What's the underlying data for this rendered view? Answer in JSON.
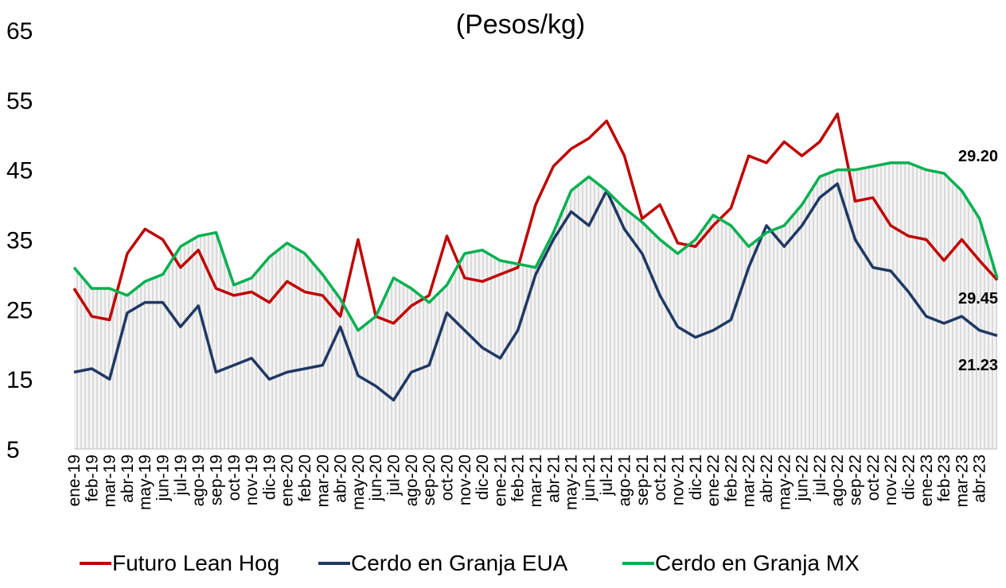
{
  "chart_data": {
    "type": "line",
    "title": "(Pesos/kg)",
    "categories": [
      "ene-19",
      "feb-19",
      "mar-19",
      "abr-19",
      "may-19",
      "jun-19",
      "jul-19",
      "ago-19",
      "sep-19",
      "oct-19",
      "nov-19",
      "dic-19",
      "ene-20",
      "feb-20",
      "mar-20",
      "abr-20",
      "may-20",
      "jun-20",
      "jul-20",
      "ago-20",
      "sep-20",
      "oct-20",
      "nov-20",
      "dic-20",
      "ene-21",
      "feb-21",
      "mar-21",
      "abr-21",
      "may-21",
      "jun-21",
      "jul-21",
      "ago-21",
      "sep-21",
      "oct-21",
      "nov-21",
      "dic-21",
      "ene-22",
      "feb-22",
      "mar-22",
      "abr-22",
      "may-22",
      "jun-22",
      "jul-22",
      "ago-22",
      "sep-22",
      "oct-22",
      "nov-22",
      "dic-22",
      "ene-23",
      "feb-23",
      "mar-23",
      "abr-23",
      null
    ],
    "series": [
      {
        "name": "Futuro Lean Hog",
        "color": "#c00000",
        "values": [
          28,
          24,
          23.5,
          33,
          36.5,
          35,
          31,
          33.5,
          28,
          27,
          27.5,
          26,
          29,
          27.5,
          27,
          24,
          35,
          24,
          23,
          25.5,
          27,
          35.5,
          29.5,
          29,
          30,
          31,
          40,
          45.5,
          48,
          49.5,
          52,
          47,
          38,
          40,
          34.5,
          34,
          37,
          39.5,
          47,
          46,
          49,
          47,
          49,
          53,
          40.5,
          41,
          37,
          35.5,
          35,
          32,
          35,
          32,
          29.2
        ]
      },
      {
        "name": "Cerdo en Granja EUA",
        "color": "#1f3864",
        "values": [
          16,
          16.5,
          15,
          24.5,
          26,
          26,
          22.5,
          25.5,
          16,
          17,
          18,
          15,
          16,
          16.5,
          17,
          22.5,
          15.5,
          14,
          12,
          16,
          17,
          24.5,
          22,
          19.5,
          18,
          22,
          30,
          35,
          39,
          37,
          42,
          36.5,
          33,
          27,
          22.5,
          21,
          22,
          23.5,
          31,
          37,
          34,
          37,
          41,
          43,
          35,
          31,
          30.5,
          27.5,
          24,
          23,
          24,
          22,
          21.23
        ]
      },
      {
        "name": "Cerdo en Granja MX",
        "color": "#00b050",
        "values": [
          31,
          28,
          28,
          27,
          29,
          30,
          34,
          35.5,
          36,
          28.5,
          29.5,
          32.5,
          34.5,
          33,
          30,
          26.5,
          22,
          24,
          29.5,
          28,
          26,
          28.5,
          33,
          33.5,
          32,
          31.5,
          31,
          36,
          42,
          44,
          42,
          39.5,
          37.5,
          35,
          33,
          35,
          38.5,
          37,
          34,
          36,
          37,
          40,
          44,
          45,
          45,
          45.5,
          46,
          46,
          45,
          44.5,
          42,
          38,
          29.45
        ]
      }
    ],
    "ylim": [
      5,
      65
    ],
    "yticks": [
      5,
      15,
      25,
      35,
      45,
      55,
      65
    ],
    "grid": false,
    "annotations": [
      "29.20",
      "29.45",
      "21.23"
    ],
    "legend": "bottom"
  }
}
